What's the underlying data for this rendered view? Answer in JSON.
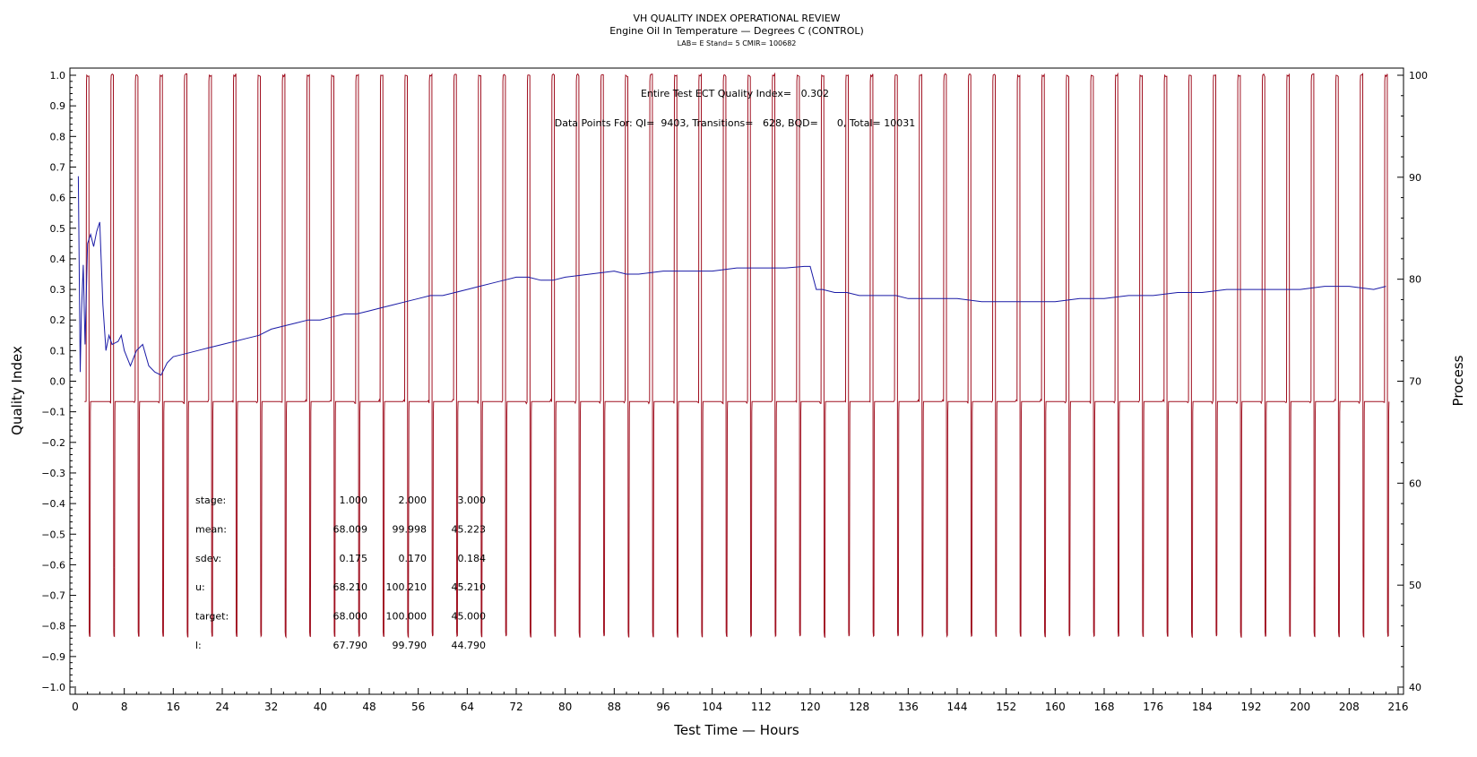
{
  "chart_data": {
    "type": "line",
    "title": "VH QUALITY INDEX OPERATIONAL REVIEW",
    "subtitle": "Engine Oil In Temperature — Degrees C (CONTROL)",
    "subtitle2": "LAB= E Stand= 5 CMIR= 100682",
    "xlabel": "Test Time — Hours",
    "ylabel": "Quality Index",
    "y2label": "Process",
    "xlim": [
      0,
      216
    ],
    "ylim": [
      -1.0,
      1.0
    ],
    "y2lim": [
      40,
      100
    ],
    "x_ticks": [
      "0",
      "8",
      "16",
      "24",
      "32",
      "40",
      "48",
      "56",
      "64",
      "72",
      "80",
      "88",
      "96",
      "104",
      "112",
      "120",
      "128",
      "136",
      "144",
      "152",
      "160",
      "168",
      "176",
      "184",
      "192",
      "200",
      "208",
      "216"
    ],
    "y_ticks": [
      "1.0",
      "0.9",
      "0.8",
      "0.7",
      "0.6",
      "0.5",
      "0.4",
      "0.3",
      "0.2",
      "0.1",
      "0.0",
      "−0.1",
      "−0.2",
      "−0.3",
      "−0.4",
      "−0.5",
      "−0.6",
      "−0.7",
      "−0.8",
      "−0.9",
      "−1.0"
    ],
    "y2_ticks": [
      "100",
      "90",
      "80",
      "70",
      "60",
      "50",
      "40"
    ],
    "annotations": {
      "qi_summary": "Entire Test ECT Quality Index=   0.302",
      "points_summary": "Data Points For: QI=  9403, Transitions=   628, BQD=      0, Total= 10031"
    },
    "stats_table": {
      "rows": [
        {
          "label": "stage:",
          "values": [
            "1.000",
            "2.000",
            "3.000"
          ]
        },
        {
          "label": "mean:",
          "values": [
            "68.009",
            "99.998",
            "45.223"
          ]
        },
        {
          "label": "sdev:",
          "values": [
            "0.175",
            "0.170",
            "0.184"
          ]
        },
        {
          "label": "u:",
          "values": [
            "68.210",
            "100.210",
            "45.210"
          ]
        },
        {
          "label": "target:",
          "values": [
            "68.000",
            "100.000",
            "45.000"
          ]
        },
        {
          "label": "l:",
          "values": [
            "67.790",
            "99.790",
            "44.790"
          ]
        }
      ]
    },
    "series": [
      {
        "name": "Quality Index",
        "axis": "left",
        "color": "#1a1aa6",
        "x": [
          0.5,
          0.8,
          1.0,
          1.3,
          1.6,
          2.0,
          2.5,
          3.0,
          3.5,
          4.0,
          4.5,
          5.0,
          5.5,
          6.0,
          7.0,
          7.5,
          8.0,
          9.0,
          10.0,
          11.0,
          12.0,
          13.0,
          14.0,
          15.0,
          16.0,
          18.0,
          20.0,
          22.0,
          24.0,
          26.0,
          28.0,
          30.0,
          32.0,
          34.0,
          36.0,
          38.0,
          40.0,
          42.0,
          44.0,
          46.0,
          48.0,
          50.0,
          52.0,
          54.0,
          56.0,
          58.0,
          60.0,
          62.0,
          64.0,
          66.0,
          68.0,
          70.0,
          72.0,
          74.0,
          76.0,
          78.0,
          80.0,
          84.0,
          88.0,
          90.0,
          92.0,
          96.0,
          100.0,
          104.0,
          108.0,
          112.0,
          116.0,
          119.0,
          120.0,
          121.0,
          122.0,
          124.0,
          126.0,
          128.0,
          130.0,
          132.0,
          134.0,
          136.0,
          138.0,
          140.0,
          144.0,
          148.0,
          152.0,
          156.0,
          160.0,
          164.0,
          168.0,
          172.0,
          176.0,
          180.0,
          184.0,
          188.0,
          192.0,
          196.0,
          200.0,
          204.0,
          208.0,
          212.0,
          214.0
        ],
        "y": [
          0.67,
          0.03,
          0.22,
          0.38,
          0.12,
          0.45,
          0.48,
          0.44,
          0.49,
          0.52,
          0.25,
          0.1,
          0.15,
          0.12,
          0.13,
          0.15,
          0.1,
          0.05,
          0.1,
          0.12,
          0.05,
          0.03,
          0.02,
          0.06,
          0.08,
          0.09,
          0.1,
          0.11,
          0.12,
          0.13,
          0.14,
          0.15,
          0.17,
          0.18,
          0.19,
          0.2,
          0.2,
          0.21,
          0.22,
          0.22,
          0.23,
          0.24,
          0.25,
          0.26,
          0.27,
          0.28,
          0.28,
          0.29,
          0.3,
          0.31,
          0.32,
          0.33,
          0.34,
          0.34,
          0.33,
          0.33,
          0.34,
          0.35,
          0.36,
          0.35,
          0.35,
          0.36,
          0.36,
          0.36,
          0.37,
          0.37,
          0.37,
          0.375,
          0.375,
          0.3,
          0.3,
          0.29,
          0.29,
          0.28,
          0.28,
          0.28,
          0.28,
          0.27,
          0.27,
          0.27,
          0.27,
          0.26,
          0.26,
          0.26,
          0.26,
          0.27,
          0.27,
          0.28,
          0.28,
          0.29,
          0.29,
          0.3,
          0.3,
          0.3,
          0.3,
          0.31,
          0.31,
          0.3,
          0.31
        ]
      },
      {
        "name": "Process",
        "axis": "right",
        "color": "#a01020",
        "cycle": {
          "start": 1.5,
          "period": 4.0,
          "count": 54
        },
        "levels": [
          68.0,
          100.0,
          45.0
        ]
      }
    ]
  }
}
